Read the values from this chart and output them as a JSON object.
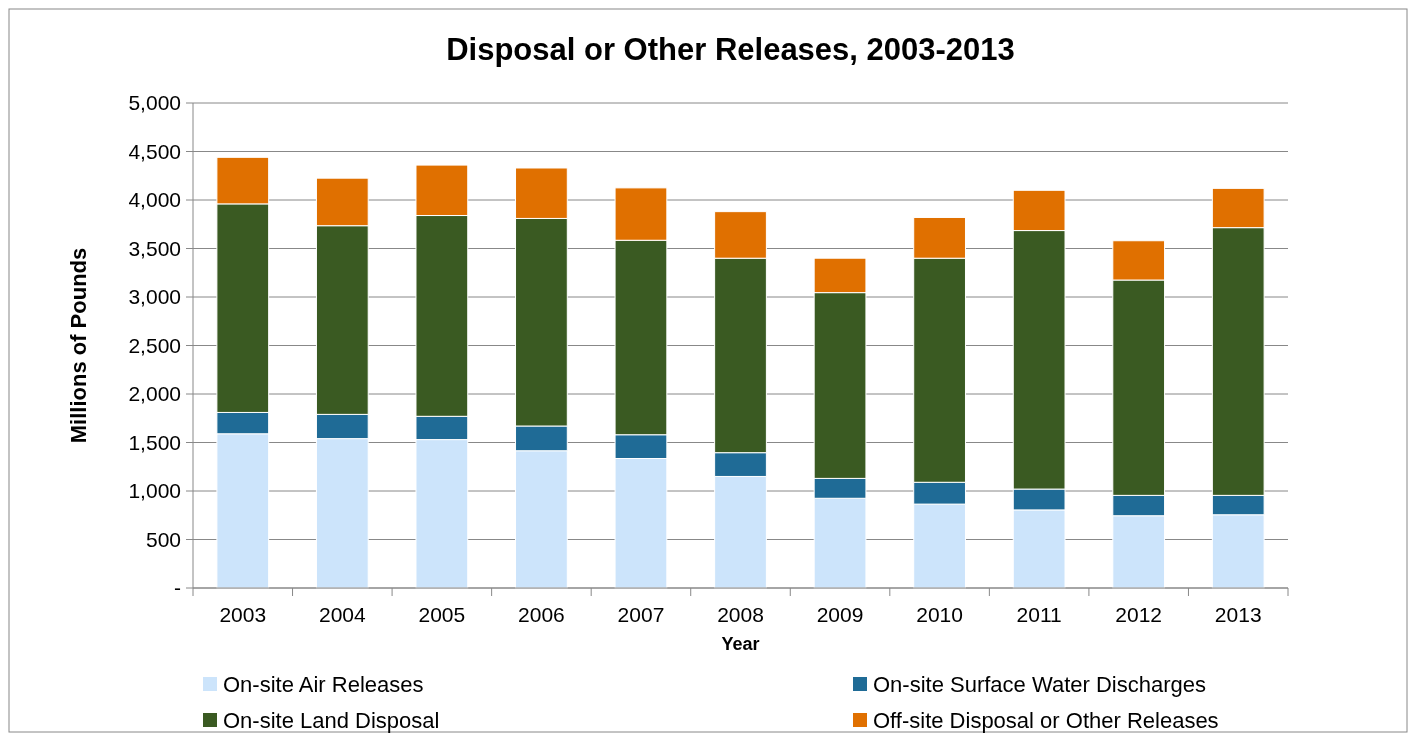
{
  "chart_data": {
    "type": "bar",
    "stacked": true,
    "title": "Disposal or Other Releases, 2003-2013",
    "xlabel": "Year",
    "ylabel": "Millions of Pounds",
    "categories": [
      "2003",
      "2004",
      "2005",
      "2006",
      "2007",
      "2008",
      "2009",
      "2010",
      "2011",
      "2012",
      "2013"
    ],
    "series": [
      {
        "name": "On-site Air Releases",
        "color": "#cce4fb",
        "values": [
          1590,
          1540,
          1530,
          1415,
          1335,
          1150,
          925,
          865,
          805,
          745,
          755
        ]
      },
      {
        "name": "On-site Surface Water Discharges",
        "color": "#1f6b96",
        "values": [
          220,
          250,
          240,
          255,
          245,
          245,
          205,
          225,
          215,
          210,
          200
        ]
      },
      {
        "name": "On-site Land Disposal",
        "color": "#3a5a22",
        "values": [
          2150,
          1945,
          2070,
          2140,
          2005,
          2005,
          1915,
          2310,
          2665,
          2220,
          2760
        ]
      },
      {
        "name": "Off-site Disposal or Other Releases",
        "color": "#e07000",
        "values": [
          480,
          490,
          520,
          520,
          540,
          480,
          355,
          420,
          415,
          405,
          405
        ]
      }
    ],
    "ylim": [
      0,
      5000
    ],
    "yticks": [
      {
        "value": 0,
        "label": "-"
      },
      {
        "value": 500,
        "label": "500"
      },
      {
        "value": 1000,
        "label": "1,000"
      },
      {
        "value": 1500,
        "label": "1,500"
      },
      {
        "value": 2000,
        "label": "2,000"
      },
      {
        "value": 2500,
        "label": "2,500"
      },
      {
        "value": 3000,
        "label": "3,000"
      },
      {
        "value": 3500,
        "label": "3,500"
      },
      {
        "value": 4000,
        "label": "4,000"
      },
      {
        "value": 4500,
        "label": "4,500"
      },
      {
        "value": 5000,
        "label": "5,000"
      }
    ],
    "grid": "y",
    "legend": "bottom"
  }
}
